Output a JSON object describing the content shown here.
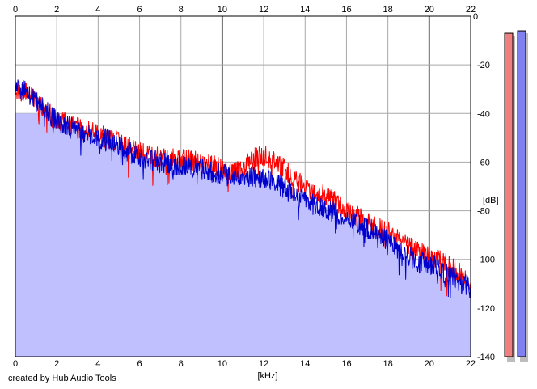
{
  "footer_text": "created by Hub Audio Tools",
  "chart_data": {
    "type": "area",
    "xlabel": "[kHz]",
    "ylabel": "[dB]",
    "xlim": [
      0,
      22
    ],
    "ylim": [
      -140,
      0
    ],
    "x_ticks": [
      0,
      2,
      4,
      6,
      8,
      10,
      12,
      14,
      16,
      18,
      20,
      22
    ],
    "y_ticks": [
      0,
      -20,
      -40,
      -60,
      -80,
      -100,
      -120,
      -140
    ],
    "grid": true,
    "x_axis_labels": "top-and-bottom",
    "y_axis_labels": "right",
    "series": [
      {
        "color": "#ff0000",
        "x": [
          0,
          0.5,
          1,
          1.5,
          2,
          2.5,
          3,
          3.5,
          4,
          4.5,
          5,
          5.5,
          6,
          6.5,
          7,
          7.5,
          8,
          8.5,
          9,
          9.5,
          10,
          10.5,
          11,
          11.5,
          12,
          12.5,
          13,
          13.5,
          14,
          14.5,
          15,
          15.5,
          16,
          16.5,
          17,
          17.5,
          18,
          18.5,
          19,
          19.5,
          20,
          20.5,
          21,
          21.5,
          22
        ],
        "values": [
          -30,
          -31,
          -35,
          -39,
          -42,
          -44,
          -46,
          -47,
          -48,
          -50,
          -52,
          -54,
          -56,
          -57,
          -58,
          -59,
          -58,
          -59,
          -60,
          -61,
          -63,
          -64,
          -63,
          -58,
          -57,
          -59,
          -63,
          -67,
          -70,
          -72,
          -74,
          -76,
          -80,
          -82,
          -85,
          -87,
          -89,
          -91,
          -95,
          -97,
          -99,
          -100,
          -103,
          -106,
          -111
        ]
      },
      {
        "color": "#0000cc",
        "x": [
          0,
          0.5,
          1,
          1.5,
          2,
          2.5,
          3,
          3.5,
          4,
          4.5,
          5,
          5.5,
          6,
          6.5,
          7,
          7.5,
          8,
          8.5,
          9,
          9.5,
          10,
          10.5,
          11,
          11.5,
          12,
          12.5,
          13,
          13.5,
          14,
          14.5,
          15,
          15.5,
          16,
          16.5,
          17,
          17.5,
          18,
          18.5,
          19,
          19.5,
          20,
          20.5,
          21,
          21.5,
          22
        ],
        "values": [
          -30,
          -31,
          -34,
          -39,
          -43,
          -45,
          -47,
          -49,
          -50,
          -51,
          -53,
          -56,
          -58,
          -59,
          -60,
          -61,
          -61,
          -62,
          -63,
          -64,
          -65,
          -66,
          -67,
          -66,
          -66,
          -68,
          -70,
          -73,
          -76,
          -78,
          -79,
          -81,
          -83,
          -85,
          -87,
          -89,
          -92,
          -96,
          -99,
          -101,
          -102,
          -104,
          -107,
          -109,
          -112
        ]
      }
    ],
    "fill_color": "#c0c0ff",
    "fill_level_db": -40,
    "meters": [
      {
        "color": "#f08080",
        "level_db": -7
      },
      {
        "color": "#8080f0",
        "level_db": -6
      }
    ]
  }
}
